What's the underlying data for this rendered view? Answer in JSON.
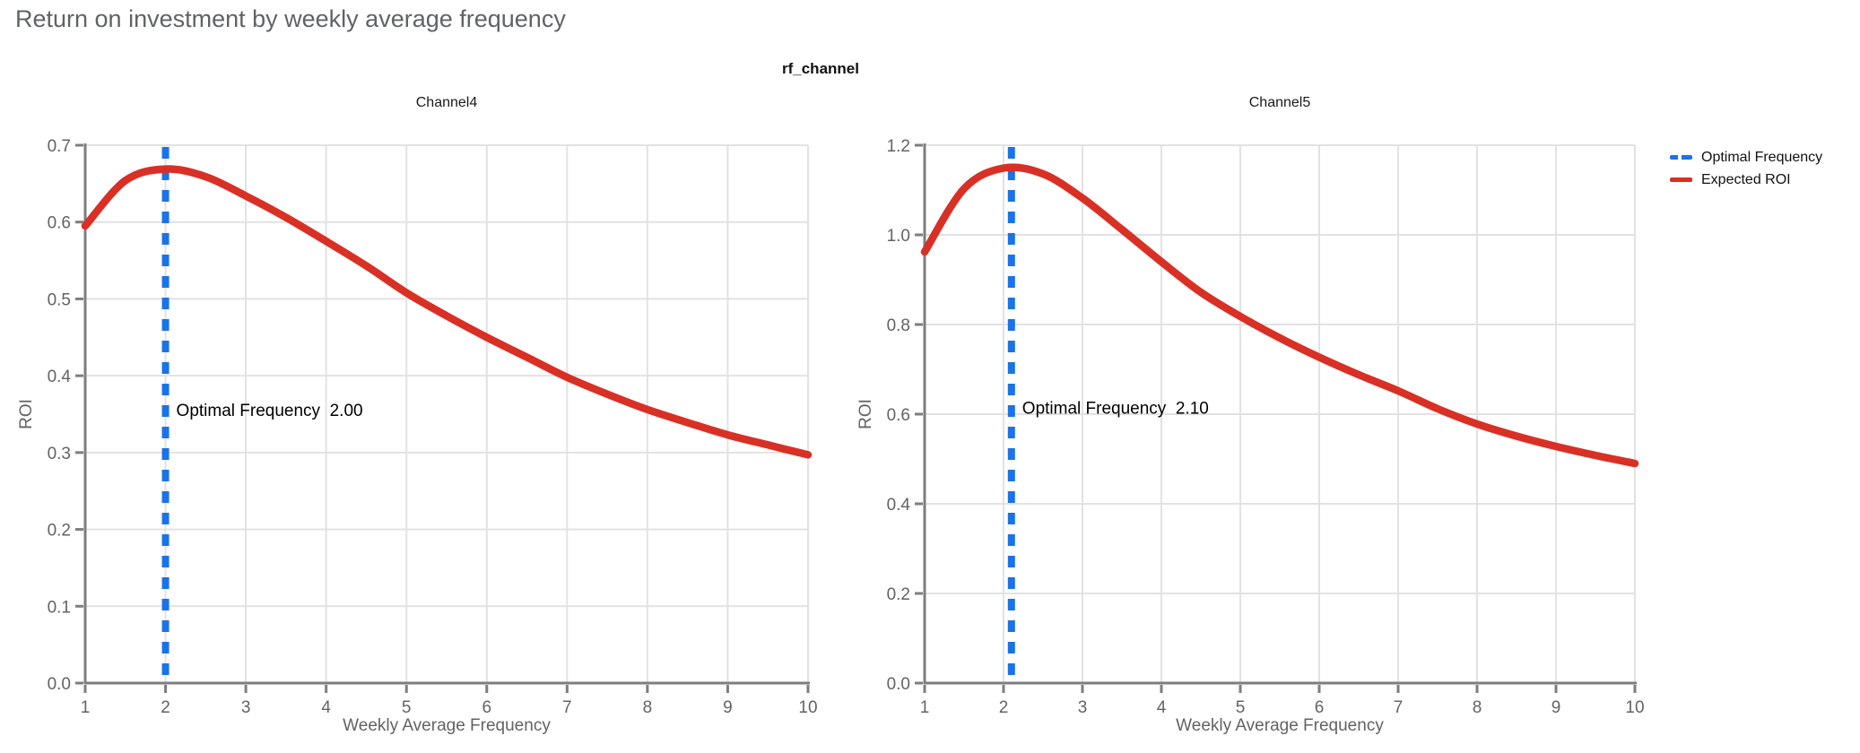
{
  "page": {
    "title": "Return on investment by weekly average frequency",
    "figure_title": "rf_channel"
  },
  "legend": {
    "items": [
      {
        "label": "Optimal Frequency",
        "color": "#1a73e8",
        "style": "dashed"
      },
      {
        "label": "Expected ROI",
        "color": "#d93025",
        "style": "solid"
      }
    ]
  },
  "colors": {
    "curve": "#d93025",
    "optimal_line": "#1a73e8",
    "grid": "#e2e2e2",
    "axis": "#7e7e7e",
    "tick_label": "#636363",
    "title": "#5f6368",
    "annotation": "#000000"
  },
  "chart_data": [
    {
      "type": "line",
      "title": "Channel4",
      "xlabel": "Weekly Average Frequency",
      "ylabel": "ROI",
      "xlim": [
        1,
        10
      ],
      "ylim": [
        0,
        0.7
      ],
      "grid": true,
      "xtick_labels": [
        "1",
        "2",
        "3",
        "4",
        "5",
        "6",
        "7",
        "8",
        "9",
        "10"
      ],
      "ytick_labels": [
        "0.0",
        "0.1",
        "0.2",
        "0.3",
        "0.4",
        "0.5",
        "0.6",
        "0.7"
      ],
      "optimal_frequency": {
        "label": "Optimal Frequency",
        "value": 2.0,
        "annotation": "Optimal Frequency  2.00",
        "annotation_y": 0.356
      },
      "series": [
        {
          "name": "Expected ROI",
          "x": [
            1,
            1.5,
            2,
            2.5,
            3,
            3.5,
            4,
            4.5,
            5,
            5.5,
            6,
            6.5,
            7,
            7.5,
            8,
            8.5,
            9,
            9.5,
            10
          ],
          "y": [
            0.595,
            0.654,
            0.669,
            0.659,
            0.634,
            0.606,
            0.575,
            0.543,
            0.508,
            0.478,
            0.45,
            0.424,
            0.398,
            0.376,
            0.356,
            0.339,
            0.323,
            0.31,
            0.297
          ]
        }
      ]
    },
    {
      "type": "line",
      "title": "Channel5",
      "xlabel": "Weekly Average Frequency",
      "ylabel": "ROI",
      "xlim": [
        1,
        10
      ],
      "ylim": [
        0,
        1.2
      ],
      "grid": true,
      "xtick_labels": [
        "1",
        "2",
        "3",
        "4",
        "5",
        "6",
        "7",
        "8",
        "9",
        "10"
      ],
      "ytick_labels": [
        "0.0",
        "0.2",
        "0.4",
        "0.6",
        "0.8",
        "1.0",
        "1.2"
      ],
      "optimal_frequency": {
        "label": "Optimal Frequency",
        "value": 2.1,
        "annotation": "Optimal Frequency  2.10",
        "annotation_y": 0.615
      },
      "series": [
        {
          "name": "Expected ROI",
          "x": [
            1,
            1.5,
            2,
            2.5,
            3,
            3.5,
            4,
            4.5,
            5,
            5.5,
            6,
            6.5,
            7,
            7.5,
            8,
            8.5,
            9,
            9.5,
            10
          ],
          "y": [
            0.962,
            1.103,
            1.149,
            1.136,
            1.082,
            1.012,
            0.94,
            0.872,
            0.818,
            0.77,
            0.727,
            0.688,
            0.652,
            0.612,
            0.578,
            0.551,
            0.528,
            0.508,
            0.49
          ]
        }
      ]
    }
  ]
}
